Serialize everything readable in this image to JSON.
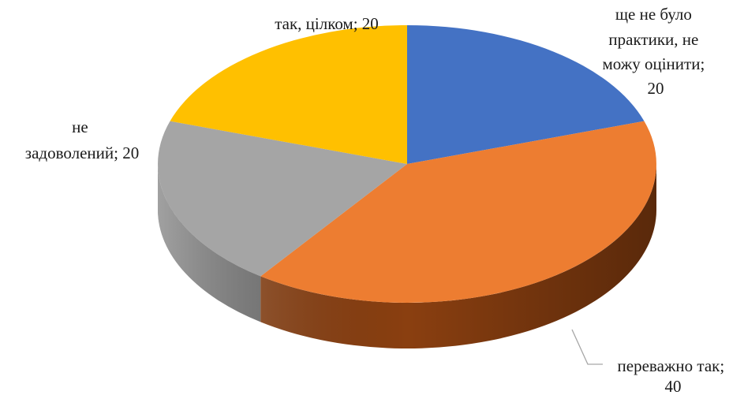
{
  "chart_data": {
    "type": "pie",
    "style": "3d",
    "title": "",
    "slices": [
      {
        "category": "ще не було практики, не можу оцінити",
        "value": 20,
        "color": "#4472C4",
        "side_color": "#2f4f8a",
        "label_lines": [
          "ще не було",
          "практики, не",
          "можу оцінити;",
          "20"
        ]
      },
      {
        "category": "переважно так",
        "value": 40,
        "color": "#ED7D31",
        "side_color": "#8a3f10",
        "label_lines": [
          "переважно так;",
          "40"
        ]
      },
      {
        "category": "не задоволений",
        "value": 20,
        "color": "#A5A5A5",
        "side_color": "#6e6e6e",
        "label_lines": [
          "не",
          "задоволений; 20"
        ]
      },
      {
        "category": "так, цілком",
        "value": 20,
        "color": "#FFC000",
        "side_color": "#b58800",
        "label_lines": [
          "так, цілком; 20"
        ]
      }
    ]
  }
}
